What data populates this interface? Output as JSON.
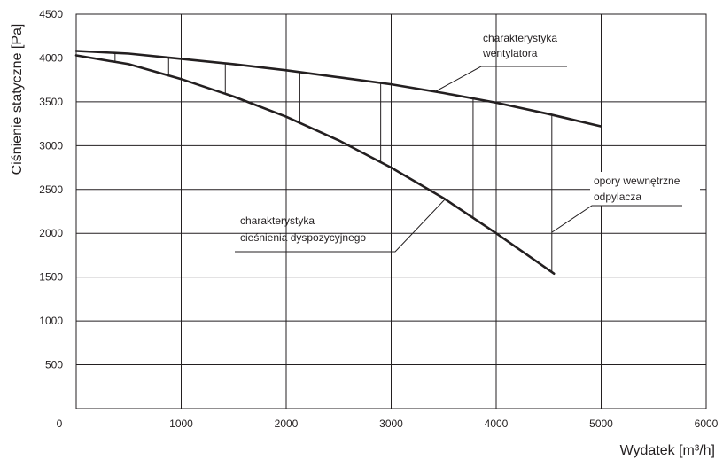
{
  "chart_data": {
    "type": "line",
    "xlabel": "Wydatek [m³/h]",
    "ylabel": "Ciśnienie statyczne [Pa]",
    "xlim": [
      0,
      6000
    ],
    "ylim": [
      0,
      4500
    ],
    "xticks": [
      "0",
      "1000",
      "2000",
      "3000",
      "4000",
      "5000",
      "6000"
    ],
    "yticks": [
      "500",
      "1000",
      "1500",
      "2000",
      "2500",
      "3000",
      "3500",
      "4000",
      "4500"
    ],
    "grid": true,
    "series": [
      {
        "name": "charakterystyka wentylatora",
        "x": [
          0,
          500,
          1000,
          1500,
          2000,
          2500,
          3000,
          3500,
          4000,
          4500,
          5000
        ],
        "y": [
          4080,
          4050,
          3990,
          3930,
          3860,
          3780,
          3700,
          3600,
          3490,
          3360,
          3220
        ]
      },
      {
        "name": "charakterystyka ciśnienia dyspozycyjnego",
        "x": [
          0,
          500,
          1000,
          1500,
          2000,
          2500,
          3000,
          3500,
          4000,
          4550
        ],
        "y": [
          4030,
          3930,
          3760,
          3560,
          3330,
          3060,
          2750,
          2400,
          2000,
          1540
        ]
      }
    ],
    "differences_x": [
      370,
      880,
      1420,
      2130,
      2900,
      3780,
      4530
    ],
    "annotations": [
      {
        "lines": [
          "charakterystyka",
          "wentylatora"
        ]
      },
      {
        "lines": [
          "charakterystyka",
          "cieśnienia dyspozycyjnego"
        ]
      },
      {
        "lines": [
          "opory wewnętrzne",
          "odpylacza"
        ]
      }
    ]
  }
}
